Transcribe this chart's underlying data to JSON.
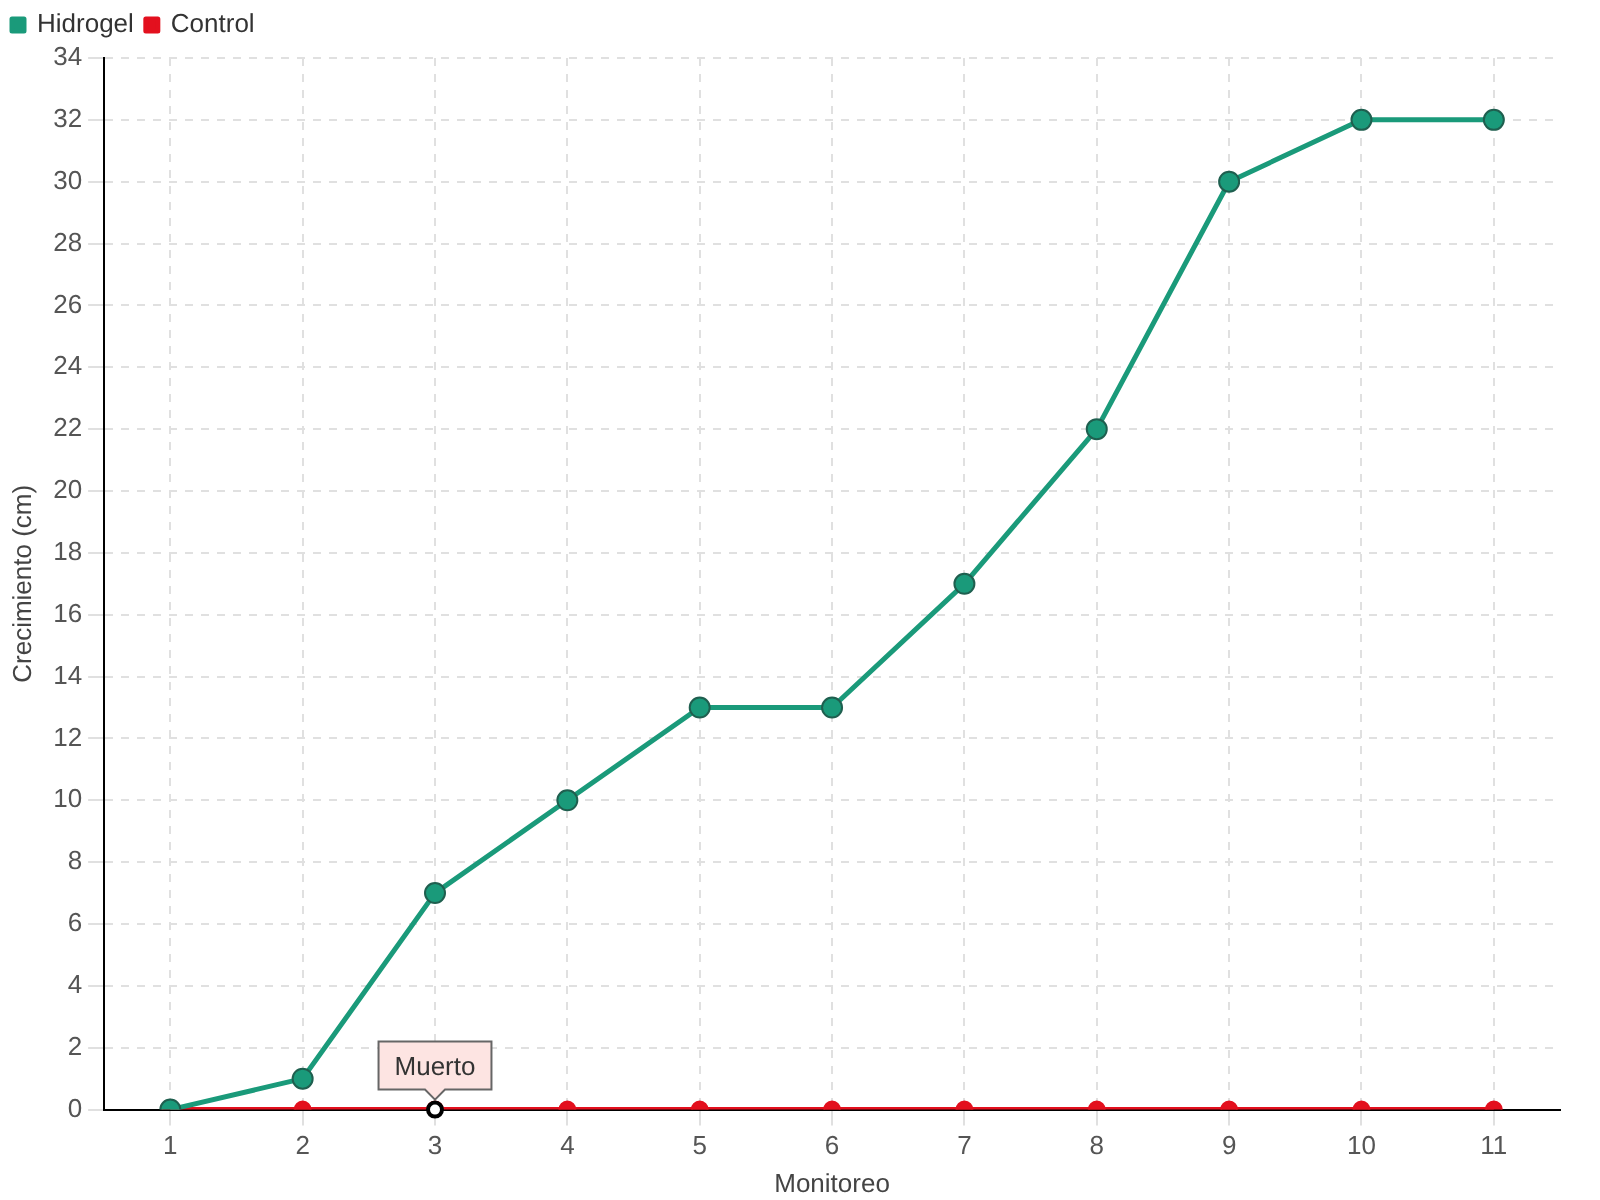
{
  "chart_data": {
    "type": "line",
    "xlabel": "Monitoreo",
    "ylabel": "Crecimiento (cm)",
    "categories": [
      "1",
      "2",
      "3",
      "4",
      "5",
      "6",
      "7",
      "8",
      "9",
      "10",
      "11"
    ],
    "series": [
      {
        "name": "Hidrogel",
        "color": "#1a9a7a",
        "values": [
          0,
          1,
          7,
          10,
          13,
          13,
          17,
          22,
          30,
          32,
          32
        ]
      },
      {
        "name": "Control",
        "color": "#e3101e",
        "values": [
          0,
          0,
          0,
          0,
          0,
          0,
          0,
          0,
          0,
          0,
          0
        ]
      }
    ],
    "ylim": [
      0,
      34
    ],
    "yticks": [
      0,
      2,
      4,
      6,
      8,
      10,
      12,
      14,
      16,
      18,
      20,
      22,
      24,
      26,
      28,
      30,
      32,
      34
    ],
    "grid": true,
    "legend": "top left",
    "marker": "circle",
    "line_style": "solid",
    "annotations": [
      {
        "text": "Muerto",
        "x": "3",
        "y": 0
      }
    ]
  }
}
